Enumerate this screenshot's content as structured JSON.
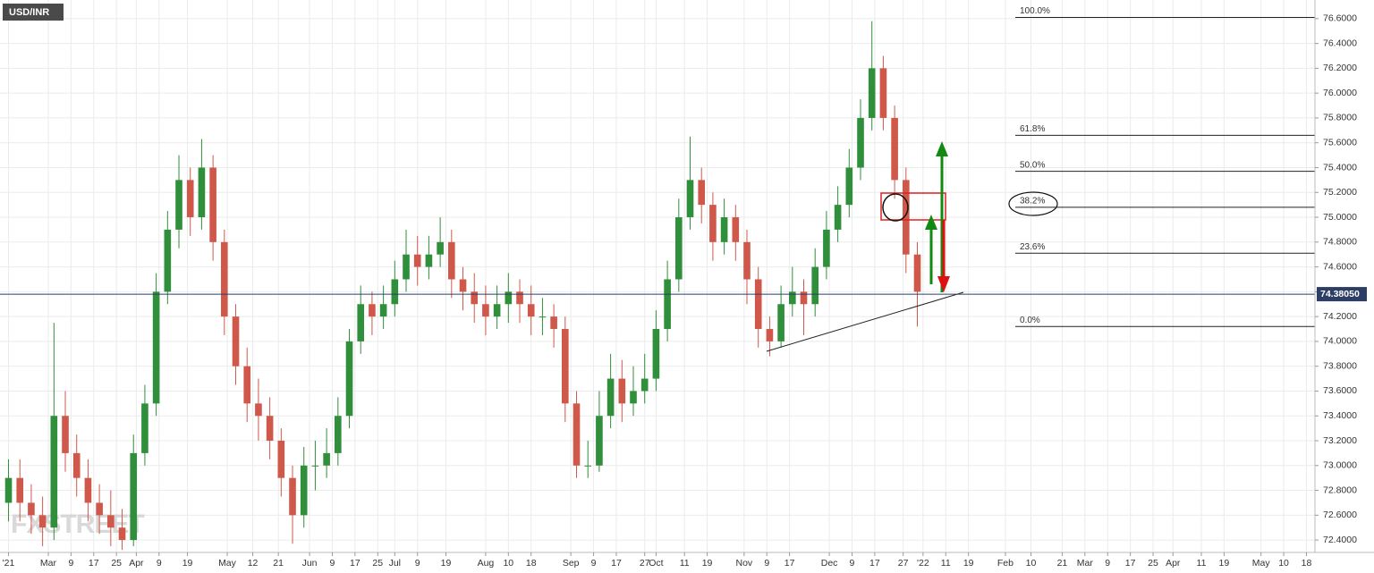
{
  "chart_data": {
    "type": "candlestick",
    "title": "USD/INR",
    "watermark": "FXSTREET",
    "up_color": "#2f8f3a",
    "down_color": "#d0584b",
    "grid": true,
    "xlim": [
      "2021-02-12",
      "2022-05-21"
    ],
    "ylim": [
      72.3,
      76.75
    ],
    "yticks": [
      {
        "value": 72.4,
        "label": "72.4000"
      },
      {
        "value": 72.6,
        "label": "72.6000"
      },
      {
        "value": 72.8,
        "label": "72.8000"
      },
      {
        "value": 73.0,
        "label": "73.0000"
      },
      {
        "value": 73.2,
        "label": "73.2000"
      },
      {
        "value": 73.4,
        "label": "73.4000"
      },
      {
        "value": 73.6,
        "label": "73.6000"
      },
      {
        "value": 73.8,
        "label": "73.8000"
      },
      {
        "value": 74.0,
        "label": "74.0000"
      },
      {
        "value": 74.2,
        "label": "74.2000"
      },
      {
        "value": 74.4,
        "label": "74.4000"
      },
      {
        "value": 74.6,
        "label": "74.6000"
      },
      {
        "value": 74.8,
        "label": "74.8000"
      },
      {
        "value": 75.0,
        "label": "75.0000"
      },
      {
        "value": 75.2,
        "label": "75.2000"
      },
      {
        "value": 75.4,
        "label": "75.4000"
      },
      {
        "value": 75.6,
        "label": "75.6000"
      },
      {
        "value": 75.8,
        "label": "75.8000"
      },
      {
        "value": 76.0,
        "label": "76.0000"
      },
      {
        "value": 76.2,
        "label": "76.2000"
      },
      {
        "value": 76.4,
        "label": "76.4000"
      },
      {
        "value": 76.6,
        "label": "76.6000"
      }
    ],
    "xticks": [
      {
        "value": "2021-02-15",
        "label": "'21"
      },
      {
        "value": "2021-03-01",
        "label": "Mar"
      },
      {
        "value": "2021-03-09",
        "label": "9"
      },
      {
        "value": "2021-03-17",
        "label": "17"
      },
      {
        "value": "2021-03-25",
        "label": "25"
      },
      {
        "value": "2021-04-01",
        "label": "Apr"
      },
      {
        "value": "2021-04-09",
        "label": "9"
      },
      {
        "value": "2021-04-19",
        "label": "19"
      },
      {
        "value": "2021-05-03",
        "label": "May"
      },
      {
        "value": "2021-05-12",
        "label": "12"
      },
      {
        "value": "2021-05-21",
        "label": "21"
      },
      {
        "value": "2021-06-01",
        "label": "Jun"
      },
      {
        "value": "2021-06-09",
        "label": "9"
      },
      {
        "value": "2021-06-17",
        "label": "17"
      },
      {
        "value": "2021-06-25",
        "label": "25"
      },
      {
        "value": "2021-07-01",
        "label": "Jul"
      },
      {
        "value": "2021-07-09",
        "label": "9"
      },
      {
        "value": "2021-07-19",
        "label": "19"
      },
      {
        "value": "2021-08-02",
        "label": "Aug"
      },
      {
        "value": "2021-08-10",
        "label": "10"
      },
      {
        "value": "2021-08-18",
        "label": "18"
      },
      {
        "value": "2021-09-01",
        "label": "Sep"
      },
      {
        "value": "2021-09-09",
        "label": "9"
      },
      {
        "value": "2021-09-17",
        "label": "17"
      },
      {
        "value": "2021-09-27",
        "label": "27"
      },
      {
        "value": "2021-10-01",
        "label": "Oct"
      },
      {
        "value": "2021-10-11",
        "label": "11"
      },
      {
        "value": "2021-10-19",
        "label": "19"
      },
      {
        "value": "2021-11-01",
        "label": "Nov"
      },
      {
        "value": "2021-11-09",
        "label": "9"
      },
      {
        "value": "2021-11-17",
        "label": "17"
      },
      {
        "value": "2021-12-01",
        "label": "Dec"
      },
      {
        "value": "2021-12-09",
        "label": "9"
      },
      {
        "value": "2021-12-17",
        "label": "17"
      },
      {
        "value": "2021-12-27",
        "label": "27"
      },
      {
        "value": "2022-01-03",
        "label": "'22"
      },
      {
        "value": "2022-01-11",
        "label": "11"
      },
      {
        "value": "2022-01-19",
        "label": "19"
      },
      {
        "value": "2022-02-01",
        "label": "Feb"
      },
      {
        "value": "2022-02-10",
        "label": "10"
      },
      {
        "value": "2022-02-21",
        "label": "21"
      },
      {
        "value": "2022-03-01",
        "label": "Mar"
      },
      {
        "value": "2022-03-09",
        "label": "9"
      },
      {
        "value": "2022-03-17",
        "label": "17"
      },
      {
        "value": "2022-03-25",
        "label": "25"
      },
      {
        "value": "2022-04-01",
        "label": "Apr"
      },
      {
        "value": "2022-04-11",
        "label": "11"
      },
      {
        "value": "2022-04-19",
        "label": "19"
      },
      {
        "value": "2022-05-02",
        "label": "May"
      },
      {
        "value": "2022-05-10",
        "label": "10"
      },
      {
        "value": "2022-05-18",
        "label": "18"
      }
    ],
    "x": [
      "2021-02-15",
      "2021-02-19",
      "2021-02-23",
      "2021-02-27",
      "2021-03-03",
      "2021-03-07",
      "2021-03-11",
      "2021-03-15",
      "2021-03-19",
      "2021-03-23",
      "2021-03-27",
      "2021-03-31",
      "2021-04-04",
      "2021-04-08",
      "2021-04-12",
      "2021-04-16",
      "2021-04-20",
      "2021-04-24",
      "2021-04-28",
      "2021-05-02",
      "2021-05-06",
      "2021-05-10",
      "2021-05-14",
      "2021-05-18",
      "2021-05-22",
      "2021-05-26",
      "2021-05-30",
      "2021-06-03",
      "2021-06-07",
      "2021-06-11",
      "2021-06-15",
      "2021-06-19",
      "2021-06-23",
      "2021-06-27",
      "2021-07-01",
      "2021-07-05",
      "2021-07-09",
      "2021-07-13",
      "2021-07-17",
      "2021-07-21",
      "2021-07-25",
      "2021-07-29",
      "2021-08-02",
      "2021-08-06",
      "2021-08-10",
      "2021-08-14",
      "2021-08-18",
      "2021-08-22",
      "2021-08-26",
      "2021-08-30",
      "2021-09-03",
      "2021-09-07",
      "2021-09-11",
      "2021-09-15",
      "2021-09-19",
      "2021-09-23",
      "2021-09-27",
      "2021-10-01",
      "2021-10-05",
      "2021-10-09",
      "2021-10-13",
      "2021-10-17",
      "2021-10-21",
      "2021-10-25",
      "2021-10-29",
      "2021-11-02",
      "2021-11-06",
      "2021-11-10",
      "2021-11-14",
      "2021-11-18",
      "2021-11-22",
      "2021-11-26",
      "2021-11-30",
      "2021-12-04",
      "2021-12-08",
      "2021-12-12",
      "2021-12-16",
      "2021-12-20",
      "2021-12-24",
      "2021-12-28",
      "2022-01-01"
    ],
    "open": [
      72.7,
      72.9,
      72.7,
      72.6,
      72.5,
      73.4,
      73.1,
      72.9,
      72.7,
      72.6,
      72.5,
      72.4,
      73.1,
      73.5,
      74.4,
      74.9,
      75.3,
      75.0,
      75.4,
      74.8,
      74.2,
      73.8,
      73.5,
      73.4,
      73.2,
      72.9,
      72.6,
      73.0,
      73.0,
      73.1,
      73.4,
      74.0,
      74.3,
      74.2,
      74.3,
      74.5,
      74.7,
      74.6,
      74.7,
      74.8,
      74.5,
      74.4,
      74.3,
      74.2,
      74.3,
      74.4,
      74.3,
      74.2,
      74.2,
      74.1,
      73.5,
      73.0,
      73.0,
      73.4,
      73.7,
      73.5,
      73.6,
      73.7,
      74.1,
      74.5,
      75.0,
      75.3,
      75.1,
      74.8,
      75.0,
      74.8,
      74.5,
      74.1,
      74.0,
      74.3,
      74.4,
      74.3,
      74.6,
      74.9,
      75.1,
      75.4,
      75.8,
      76.2,
      75.8,
      75.3,
      74.7
    ],
    "high": [
      73.05,
      73.05,
      72.85,
      72.75,
      74.15,
      73.6,
      73.25,
      73.05,
      72.85,
      72.8,
      72.65,
      73.25,
      73.65,
      74.55,
      75.05,
      75.5,
      75.4,
      75.63,
      75.5,
      74.9,
      74.3,
      73.95,
      73.7,
      73.55,
      73.3,
      73.0,
      73.15,
      73.2,
      73.3,
      73.55,
      74.1,
      74.45,
      74.4,
      74.45,
      74.65,
      74.9,
      74.85,
      74.85,
      75.0,
      74.9,
      74.6,
      74.55,
      74.45,
      74.45,
      74.55,
      74.5,
      74.45,
      74.35,
      74.3,
      74.2,
      73.6,
      73.2,
      73.6,
      73.9,
      73.85,
      73.8,
      73.9,
      74.25,
      74.65,
      75.15,
      75.65,
      75.4,
      75.2,
      75.15,
      75.1,
      74.9,
      74.6,
      74.2,
      74.45,
      74.6,
      74.5,
      74.75,
      75.05,
      75.25,
      75.55,
      75.95,
      76.58,
      76.3,
      75.9,
      75.4,
      74.8
    ],
    "low": [
      72.55,
      72.55,
      72.45,
      72.35,
      72.4,
      72.95,
      72.75,
      72.55,
      72.45,
      72.35,
      72.32,
      72.35,
      73.0,
      73.4,
      74.3,
      74.75,
      74.85,
      74.9,
      74.65,
      74.05,
      73.65,
      73.35,
      73.2,
      73.05,
      72.75,
      72.37,
      72.5,
      72.8,
      72.9,
      73.0,
      73.3,
      73.9,
      74.05,
      74.1,
      74.2,
      74.4,
      74.45,
      74.5,
      74.6,
      74.35,
      74.25,
      74.15,
      74.05,
      74.1,
      74.15,
      74.15,
      74.05,
      74.05,
      73.95,
      73.35,
      72.9,
      72.9,
      72.95,
      73.3,
      73.35,
      73.4,
      73.5,
      73.6,
      74.0,
      74.4,
      74.9,
      74.95,
      74.65,
      74.7,
      74.65,
      74.3,
      73.95,
      73.88,
      73.95,
      74.2,
      74.05,
      74.2,
      74.5,
      74.8,
      75.0,
      75.3,
      75.7,
      75.7,
      75.15,
      74.55,
      74.12
    ],
    "close": [
      72.9,
      72.7,
      72.6,
      72.5,
      73.4,
      73.1,
      72.9,
      72.7,
      72.6,
      72.5,
      72.4,
      73.1,
      73.5,
      74.4,
      74.9,
      75.3,
      75.0,
      75.4,
      74.8,
      74.2,
      73.8,
      73.5,
      73.4,
      73.2,
      72.9,
      72.6,
      73.0,
      73.0,
      73.1,
      73.4,
      74.0,
      74.3,
      74.2,
      74.3,
      74.5,
      74.7,
      74.6,
      74.7,
      74.8,
      74.5,
      74.4,
      74.3,
      74.2,
      74.3,
      74.4,
      74.3,
      74.2,
      74.2,
      74.1,
      73.5,
      73.0,
      73.0,
      73.4,
      73.7,
      73.5,
      73.6,
      73.7,
      74.1,
      74.5,
      75.0,
      75.3,
      75.1,
      74.8,
      75.0,
      74.8,
      74.5,
      74.1,
      74.0,
      74.3,
      74.4,
      74.3,
      74.6,
      74.9,
      75.1,
      75.4,
      75.8,
      76.2,
      75.8,
      75.3,
      74.7,
      74.4
    ],
    "last_price": {
      "value": 74.3805,
      "label": "74.38050"
    },
    "fib_levels": [
      {
        "label": "100.0%",
        "value": 76.61
      },
      {
        "label": "61.8%",
        "value": 75.66
      },
      {
        "label": "50.0%",
        "value": 75.37
      },
      {
        "label": "38.2%",
        "value": 75.08
      },
      {
        "label": "23.6%",
        "value": 74.71
      },
      {
        "label": "0.0%",
        "value": 74.12
      }
    ]
  }
}
